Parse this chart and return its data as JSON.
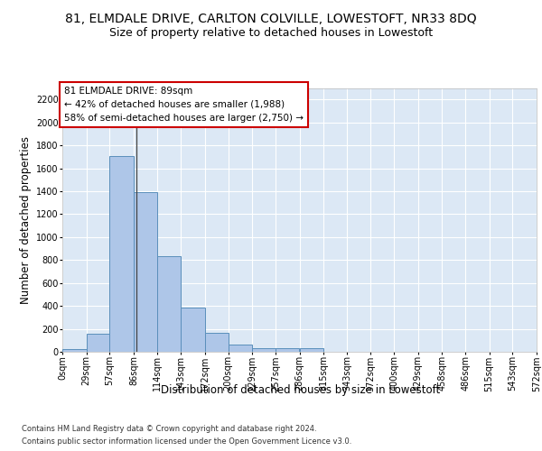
{
  "title_line1": "81, ELMDALE DRIVE, CARLTON COLVILLE, LOWESTOFT, NR33 8DQ",
  "title_line2": "Size of property relative to detached houses in Lowestoft",
  "xlabel": "Distribution of detached houses by size in Lowestoft",
  "ylabel": "Number of detached properties",
  "footer_line1": "Contains HM Land Registry data © Crown copyright and database right 2024.",
  "footer_line2": "Contains public sector information licensed under the Open Government Licence v3.0.",
  "bin_edges": [
    0,
    29,
    57,
    86,
    114,
    143,
    172,
    200,
    229,
    257,
    286,
    315,
    343,
    372,
    400,
    429,
    458,
    486,
    515,
    543,
    572
  ],
  "bar_heights": [
    20,
    155,
    1710,
    1395,
    830,
    385,
    165,
    65,
    35,
    30,
    30,
    0,
    0,
    0,
    0,
    0,
    0,
    0,
    0,
    0
  ],
  "bar_color": "#aec6e8",
  "bar_edge_color": "#5a8fbb",
  "vline_x": 89,
  "annotation_title": "81 ELMDALE DRIVE: 89sqm",
  "annotation_line2": "← 42% of detached houses are smaller (1,988)",
  "annotation_line3": "58% of semi-detached houses are larger (2,750) →",
  "annotation_box_facecolor": "#ffffff",
  "annotation_box_edgecolor": "#cc0000",
  "ylim": [
    0,
    2300
  ],
  "yticks": [
    0,
    200,
    400,
    600,
    800,
    1000,
    1200,
    1400,
    1600,
    1800,
    2000,
    2200
  ],
  "plot_bg_color": "#dce8f5",
  "grid_color": "#ffffff",
  "fig_bg_color": "#ffffff",
  "title_fontsize": 10,
  "subtitle_fontsize": 9,
  "tick_label_fontsize": 7,
  "axis_label_fontsize": 8.5,
  "annotation_fontsize": 7.5,
  "footer_fontsize": 6
}
